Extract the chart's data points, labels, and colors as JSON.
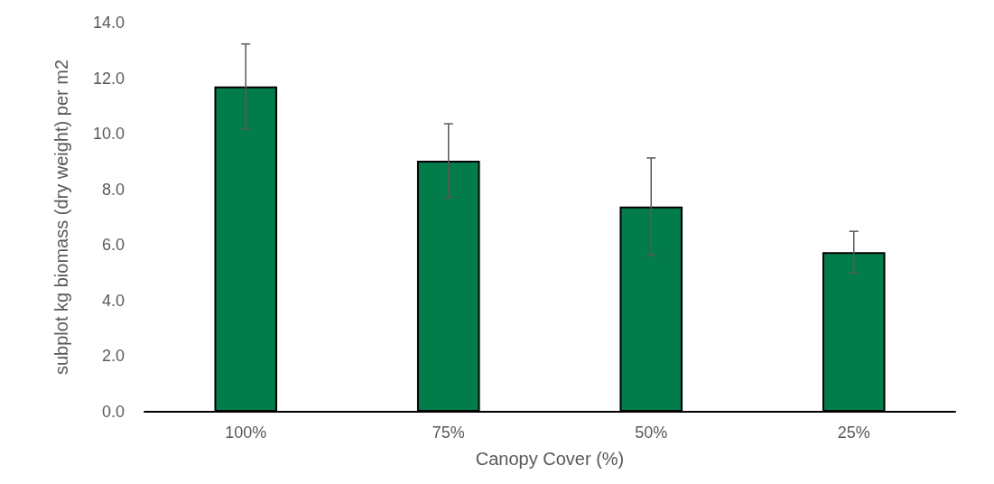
{
  "chart_data": {
    "type": "bar",
    "xlabel": "Canopy Cover (%)",
    "ylabel": "subplot kg biomass (dry weight) per m2",
    "categories": [
      "100%",
      "75%",
      "50%",
      "25%"
    ],
    "values": [
      11.7,
      9.03,
      7.38,
      5.74
    ],
    "errors": [
      1.53,
      1.33,
      1.75,
      0.75
    ],
    "color": "#037c4b",
    "ylim": [
      0,
      14
    ],
    "yticks": [
      {
        "value": 0,
        "label": "0.0"
      },
      {
        "value": 2,
        "label": "2.0"
      },
      {
        "value": 4,
        "label": "4.0"
      },
      {
        "value": 6,
        "label": "6.0"
      },
      {
        "value": 8,
        "label": "8.0"
      },
      {
        "value": 10,
        "label": "10.0"
      },
      {
        "value": 12,
        "label": "12.0"
      },
      {
        "value": 14,
        "label": "14.0"
      }
    ],
    "grid": false
  }
}
